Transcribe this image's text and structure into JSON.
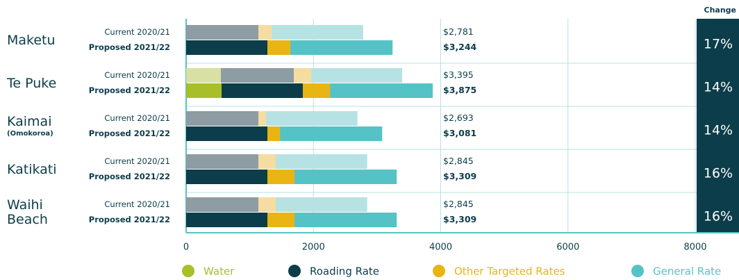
{
  "chart_data": {
    "type": "bar",
    "orientation": "horizontal",
    "stacked": true,
    "categories": [
      "Maketu",
      "Te Puke",
      "Kaimai",
      "Katikati",
      "Waihi Beach"
    ],
    "category_notes": [
      null,
      null,
      "(Omokoroa)",
      null,
      null
    ],
    "periods": [
      "Current 2020/21",
      "Proposed 2021/22"
    ],
    "series": [
      {
        "name": "Water",
        "color": "#a8bf2a",
        "current_color": "#d9e0a3",
        "current": [
          0,
          546,
          0,
          0,
          0
        ],
        "proposed": [
          0,
          557,
          0,
          0,
          0
        ]
      },
      {
        "name": "Roading Rate",
        "color": "#0c3d4a",
        "current_color": "#8e9ca3",
        "current": [
          1135,
          1146,
          1135,
          1135,
          1135
        ],
        "proposed": [
          1277,
          1277,
          1277,
          1277,
          1277
        ]
      },
      {
        "name": "Other Targeted Rates",
        "color": "#e8b514",
        "current_color": "#f5dca0",
        "current": [
          208,
          273,
          120,
          273,
          273
        ],
        "proposed": [
          360,
          426,
          197,
          426,
          426
        ]
      },
      {
        "name": "General Rate",
        "color": "#55c3c5",
        "current_color": "#b7e2e3",
        "current": [
          1438,
          1430,
          1438,
          1437,
          1437
        ],
        "proposed": [
          1607,
          1615,
          1607,
          1606,
          1606
        ]
      }
    ],
    "totals": {
      "current": [
        2781,
        3395,
        2693,
        2845,
        2845
      ],
      "current_labels": [
        "$2,781",
        "$3,395",
        "$2,693",
        "$2,845",
        "$2,845"
      ],
      "proposed": [
        3244,
        3875,
        3081,
        3309,
        3309
      ],
      "proposed_labels": [
        "$3,244",
        "$3,875",
        "$3,081",
        "$3,309",
        "$3,309"
      ]
    },
    "change_title": "Change",
    "change": [
      17,
      14,
      14,
      16,
      16
    ],
    "change_labels": [
      "17%",
      "14%",
      "14%",
      "16%",
      "16%"
    ],
    "xlim": [
      0,
      8000
    ],
    "xticks": [
      0,
      2000,
      4000,
      6000,
      8000
    ],
    "grid": true,
    "legend": "bottom"
  }
}
